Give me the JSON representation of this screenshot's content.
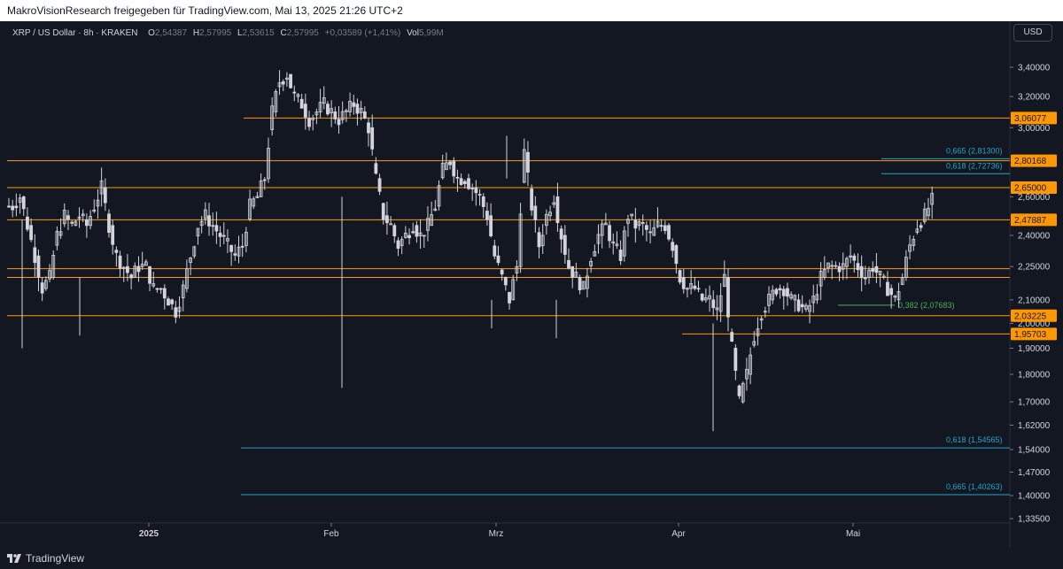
{
  "header": {
    "title": "MakroVisionResearch freigegeben für TradingView.com, Mai 13, 2025 21:26 UTC+2"
  },
  "legend": {
    "symbol": "XRP / US Dollar · 8h · KRAKEN",
    "open_label": "O",
    "open": "2,54387",
    "high_label": "H",
    "high": "2,57995",
    "low_label": "L",
    "low": "2,53615",
    "close_label": "C",
    "close": "2,57995",
    "change": "+0,03589 (+1,41%)",
    "vol_label": "Vol",
    "vol": "5,99M"
  },
  "currency_button": "USD",
  "footer": {
    "brand": "TradingView"
  },
  "colors": {
    "background": "#131722",
    "candle": "#d1d4dc",
    "orange": "#ff9800",
    "teal": "#22a4c9",
    "green": "#4caf50",
    "axis_text": "#d1d4dc"
  },
  "chart_data": {
    "type": "candlestick",
    "y_scale": "log",
    "y_ticks": [
      "3,40000",
      "3,20000",
      "3,00000",
      "2,60000",
      "2,40000",
      "2,25000",
      "2,10000",
      "2,00000",
      "1,90000",
      "1,80000",
      "1,70000",
      "1,62000",
      "1,54000",
      "1,47000",
      "1,40000",
      "1,33500"
    ],
    "x_ticks": [
      "2025",
      "Feb",
      "Mrz",
      "Apr",
      "Mai"
    ],
    "horizontal_levels": [
      {
        "value": 3.06077,
        "label": "3,06077"
      },
      {
        "value": 2.80168,
        "label": "2,80168"
      },
      {
        "value": 2.65,
        "label": "2,65000"
      },
      {
        "value": 2.47887,
        "label": "2,47887"
      },
      {
        "value": 2.24,
        "label": ""
      },
      {
        "value": 2.2,
        "label": ""
      },
      {
        "value": 2.03225,
        "label": "2,03225"
      },
      {
        "value": 1.95703,
        "label": "1,95703"
      }
    ],
    "fib_levels": [
      {
        "value": 2.813,
        "label": "0,665 (2,81300)",
        "color": "teal"
      },
      {
        "value": 2.72736,
        "label": "0,618 (2,72736)",
        "color": "teal"
      },
      {
        "value": 2.07683,
        "label": "0,382 (2,07683)",
        "color": "green"
      },
      {
        "value": 1.54565,
        "label": "0,618 (1,54565)",
        "color": "teal"
      },
      {
        "value": 1.40263,
        "label": "0,665 (1,40263)",
        "color": "teal"
      }
    ],
    "series": [
      {
        "values": [
          2.55,
          2.6,
          2.45,
          2.3,
          2.15,
          2.2,
          2.4,
          2.5,
          2.45,
          2.5,
          2.45,
          2.55,
          2.65,
          2.45,
          2.3,
          2.25,
          2.2,
          2.25,
          2.25,
          2.15,
          2.15,
          2.1,
          2.05,
          2.15,
          2.3,
          2.45,
          2.5,
          2.45,
          2.4,
          2.35,
          2.3,
          2.35,
          2.55,
          2.6,
          2.7,
          3.1,
          3.3,
          3.35,
          3.2,
          3.15,
          3.05,
          3.1,
          3.15,
          3.1,
          3.05,
          3.1,
          3.15,
          3.1,
          3.0,
          2.7,
          2.5,
          2.45,
          2.35,
          2.4,
          2.45,
          2.4,
          2.45,
          2.55,
          2.75,
          2.8,
          2.7,
          2.7,
          2.65,
          2.6,
          2.5,
          2.3,
          2.2,
          2.1,
          2.25,
          2.85,
          2.55,
          2.35,
          2.5,
          2.6,
          2.4,
          2.25,
          2.2,
          2.15,
          2.3,
          2.4,
          2.45,
          2.35,
          2.3,
          2.5,
          2.45,
          2.45,
          2.4,
          2.45,
          2.45,
          2.35,
          2.2,
          2.15,
          2.15,
          2.1,
          2.1,
          2.05,
          2.2,
          1.9,
          1.7,
          1.8,
          1.95,
          2.05,
          2.1,
          2.15,
          2.15,
          2.1,
          2.08,
          2.05,
          2.1,
          2.2,
          2.25,
          2.25,
          2.25,
          2.3,
          2.25,
          2.2,
          2.25,
          2.2,
          2.15,
          2.1,
          2.2,
          2.35,
          2.45,
          2.5,
          2.58
        ]
      }
    ]
  }
}
